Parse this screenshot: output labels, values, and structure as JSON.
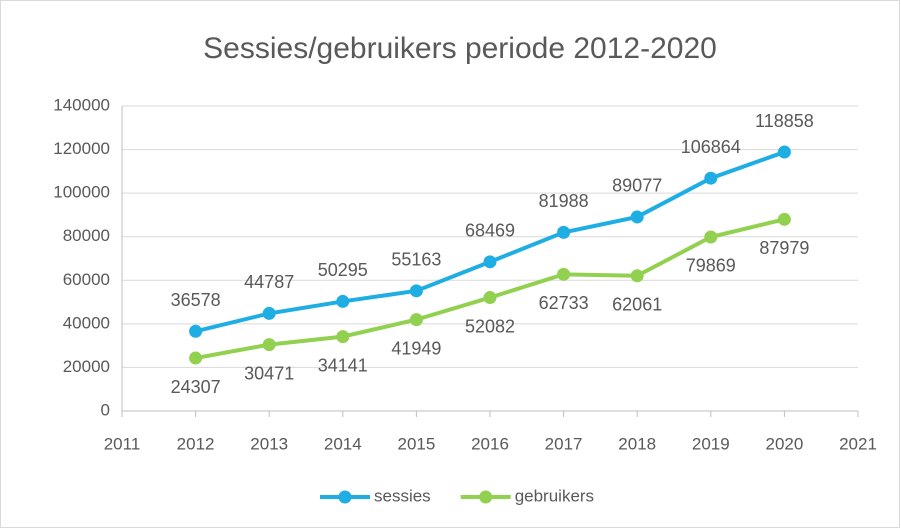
{
  "chart_data": {
    "type": "line",
    "title": "Sessies/gebruikers periode 2012-2020",
    "x": [
      2012,
      2013,
      2014,
      2015,
      2016,
      2017,
      2018,
      2019,
      2020
    ],
    "series": [
      {
        "name": "sessies",
        "color": "#1eaee4",
        "values": [
          36578,
          44787,
          50295,
          55163,
          68469,
          81988,
          89077,
          106864,
          118858
        ]
      },
      {
        "name": "gebruikers",
        "color": "#92d050",
        "values": [
          24307,
          30471,
          34141,
          41949,
          52082,
          62733,
          62061,
          79869,
          87979
        ]
      }
    ],
    "xlim": [
      2011,
      2021
    ],
    "xticks": [
      2011,
      2012,
      2013,
      2014,
      2015,
      2016,
      2017,
      2018,
      2019,
      2020,
      2021
    ],
    "ylim": [
      0,
      140000
    ],
    "yticks": [
      0,
      20000,
      40000,
      60000,
      80000,
      100000,
      120000,
      140000
    ],
    "grid": true,
    "legend": "bottom"
  }
}
